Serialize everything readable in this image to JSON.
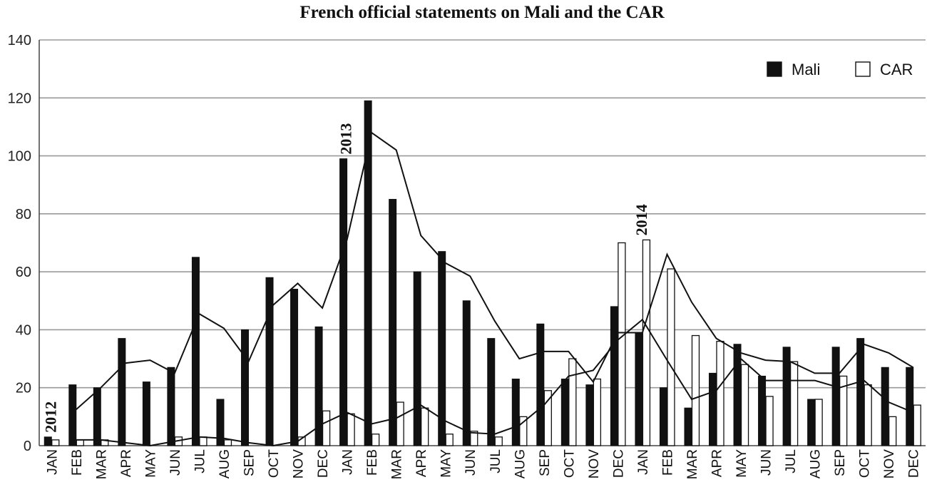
{
  "chart_data": {
    "type": "bar",
    "title": "French official statements on Mali and the CAR",
    "xlabel": "",
    "ylabel": "",
    "ylim": [
      0,
      140
    ],
    "yticks": [
      0,
      20,
      40,
      60,
      80,
      100,
      120,
      140
    ],
    "grid": true,
    "legend_position": "top-right",
    "categories": [
      "JAN",
      "FEB",
      "MAR",
      "APR",
      "MAY",
      "JUN",
      "JUL",
      "AUG",
      "SEP",
      "OCT",
      "NOV",
      "DEC",
      "JAN",
      "FEB",
      "MAR",
      "APR",
      "MAY",
      "JUN",
      "JUL",
      "AUG",
      "SEP",
      "OCT",
      "NOV",
      "DEC",
      "JAN",
      "FEB",
      "MAR",
      "APR",
      "MAY",
      "JUN",
      "JUL",
      "AUG",
      "SEP",
      "OCT",
      "NOV",
      "DEC"
    ],
    "year_labels": [
      {
        "text": "2012",
        "index": 0
      },
      {
        "text": "2013",
        "index": 12
      },
      {
        "text": "2014",
        "index": 24
      }
    ],
    "series": [
      {
        "name": "Mali",
        "fill": "#111111",
        "values": [
          3,
          21,
          20,
          37,
          22,
          27,
          65,
          16,
          40,
          58,
          54,
          41,
          99,
          119,
          85,
          60,
          67,
          50,
          37,
          23,
          42,
          23,
          21,
          48,
          39,
          20,
          13,
          25,
          35,
          24,
          34,
          16,
          34,
          37,
          27,
          27
        ],
        "trend": [
          null,
          12.5,
          20,
          28.5,
          29.5,
          25,
          45.5,
          40.5,
          29,
          48.5,
          56,
          47.5,
          71,
          108,
          102,
          72.5,
          63,
          58.5,
          43,
          30,
          32.5,
          32.5,
          22,
          39,
          39,
          66,
          49.5,
          37,
          32,
          29.5,
          29,
          25,
          25,
          35,
          32,
          27
        ]
      },
      {
        "name": "CAR",
        "fill": "#ffffff",
        "values": [
          2,
          2,
          2,
          0,
          0,
          3,
          3,
          2,
          0,
          0,
          3,
          12,
          11,
          4,
          15,
          13,
          4,
          5,
          3,
          10,
          19,
          30,
          23,
          70,
          71,
          61,
          38,
          36,
          28,
          17,
          29,
          16,
          24,
          21,
          10,
          14
        ],
        "trend": [
          null,
          2,
          2,
          1,
          0,
          1.5,
          3,
          2.5,
          1,
          0,
          1.5,
          7.5,
          11.5,
          7.5,
          9.5,
          14,
          8.5,
          4.5,
          4,
          7,
          14,
          24,
          26,
          36.5,
          43.5,
          29.5,
          16,
          19,
          30,
          22.5,
          22.5,
          22.5,
          20,
          22.5,
          15,
          11.5
        ]
      }
    ]
  }
}
